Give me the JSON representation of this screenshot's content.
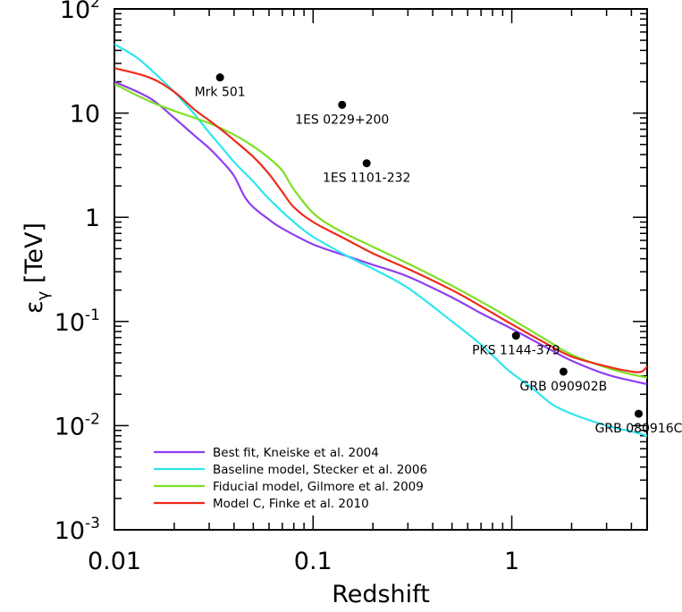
{
  "chart_data": {
    "type": "line",
    "xlabel": "Redshift",
    "ylabel": {
      "symbol": "ε",
      "subscript": "γ",
      "unit": "[TeV]"
    },
    "x_scale": "log",
    "y_scale": "log",
    "xlim": [
      0.01,
      4.8
    ],
    "ylim": [
      0.001,
      100
    ],
    "x_ticks": [
      {
        "value": 0.01,
        "label": "0.01"
      },
      {
        "value": 0.1,
        "label": "0.1"
      },
      {
        "value": 1,
        "label": "1"
      }
    ],
    "y_ticks": [
      {
        "value": 0.001,
        "base": "10",
        "exp": "-3",
        "label": ""
      },
      {
        "value": 0.01,
        "base": "10",
        "exp": "-2",
        "label": ""
      },
      {
        "value": 0.1,
        "base": "10",
        "exp": "-1",
        "label": ""
      },
      {
        "value": 1,
        "base": "",
        "exp": "",
        "label": "1"
      },
      {
        "value": 10,
        "base": "",
        "exp": "",
        "label": "10"
      },
      {
        "value": 100,
        "base": "10",
        "exp": "2",
        "label": ""
      }
    ],
    "legend_position": "bottom-left",
    "grid": false,
    "series": [
      {
        "name": "Best fit, Kneiske et al. 2004",
        "color": "#8f3ff0",
        "points": [
          [
            0.01,
            20
          ],
          [
            0.015,
            14
          ],
          [
            0.02,
            9
          ],
          [
            0.025,
            6.2
          ],
          [
            0.03,
            4.6
          ],
          [
            0.035,
            3.4
          ],
          [
            0.04,
            2.5
          ],
          [
            0.045,
            1.6
          ],
          [
            0.05,
            1.25
          ],
          [
            0.06,
            0.95
          ],
          [
            0.07,
            0.78
          ],
          [
            0.1,
            0.55
          ],
          [
            0.15,
            0.42
          ],
          [
            0.2,
            0.35
          ],
          [
            0.3,
            0.27
          ],
          [
            0.5,
            0.17
          ],
          [
            0.7,
            0.12
          ],
          [
            1.0,
            0.085
          ],
          [
            1.5,
            0.056
          ],
          [
            2.0,
            0.042
          ],
          [
            3.0,
            0.031
          ],
          [
            4.0,
            0.027
          ],
          [
            4.8,
            0.025
          ]
        ]
      },
      {
        "name": "Baseline model, Stecker et al. 2006",
        "color": "#2ee6ee",
        "points": [
          [
            0.01,
            46
          ],
          [
            0.013,
            34
          ],
          [
            0.016,
            24
          ],
          [
            0.02,
            16
          ],
          [
            0.025,
            10
          ],
          [
            0.03,
            6.5
          ],
          [
            0.035,
            4.6
          ],
          [
            0.04,
            3.4
          ],
          [
            0.05,
            2.2
          ],
          [
            0.06,
            1.5
          ],
          [
            0.08,
            0.9
          ],
          [
            0.1,
            0.65
          ],
          [
            0.15,
            0.42
          ],
          [
            0.2,
            0.32
          ],
          [
            0.3,
            0.21
          ],
          [
            0.5,
            0.1
          ],
          [
            0.7,
            0.06
          ],
          [
            0.9,
            0.038
          ],
          [
            1.0,
            0.032
          ],
          [
            1.3,
            0.022
          ],
          [
            1.6,
            0.016
          ],
          [
            2.0,
            0.013
          ],
          [
            3.0,
            0.01
          ],
          [
            4.0,
            0.0088
          ],
          [
            4.8,
            0.008
          ]
        ]
      },
      {
        "name": "Fiducial model, Gilmore et al. 2009",
        "color": "#7ee022",
        "points": [
          [
            0.01,
            19
          ],
          [
            0.015,
            13
          ],
          [
            0.02,
            10.5
          ],
          [
            0.03,
            8
          ],
          [
            0.04,
            6.2
          ],
          [
            0.05,
            4.8
          ],
          [
            0.06,
            3.7
          ],
          [
            0.07,
            2.8
          ],
          [
            0.08,
            1.85
          ],
          [
            0.1,
            1.1
          ],
          [
            0.13,
            0.78
          ],
          [
            0.2,
            0.52
          ],
          [
            0.3,
            0.36
          ],
          [
            0.5,
            0.22
          ],
          [
            0.7,
            0.155
          ],
          [
            1.0,
            0.105
          ],
          [
            1.5,
            0.066
          ],
          [
            2.0,
            0.048
          ],
          [
            3.0,
            0.036
          ],
          [
            4.0,
            0.031
          ],
          [
            4.8,
            0.029
          ]
        ]
      },
      {
        "name": "Model C, Finke et al. 2010",
        "color": "#ee2a1c",
        "points": [
          [
            0.01,
            27
          ],
          [
            0.015,
            22
          ],
          [
            0.02,
            16
          ],
          [
            0.025,
            11
          ],
          [
            0.03,
            8.5
          ],
          [
            0.035,
            6.8
          ],
          [
            0.04,
            5.5
          ],
          [
            0.05,
            3.8
          ],
          [
            0.06,
            2.6
          ],
          [
            0.07,
            1.75
          ],
          [
            0.08,
            1.25
          ],
          [
            0.1,
            0.9
          ],
          [
            0.15,
            0.6
          ],
          [
            0.2,
            0.45
          ],
          [
            0.3,
            0.32
          ],
          [
            0.5,
            0.2
          ],
          [
            0.7,
            0.14
          ],
          [
            1.0,
            0.094
          ],
          [
            1.5,
            0.061
          ],
          [
            2.0,
            0.046
          ],
          [
            3.0,
            0.037
          ],
          [
            4.0,
            0.033
          ],
          [
            4.5,
            0.033
          ],
          [
            4.8,
            0.037
          ]
        ]
      }
    ],
    "sources": [
      {
        "name": "Mrk 501",
        "x": 0.034,
        "y": 22
      },
      {
        "name": "1ES 0229+200",
        "x": 0.14,
        "y": 12
      },
      {
        "name": "1ES 1101-232",
        "x": 0.186,
        "y": 3.3
      },
      {
        "name": "PKS 1144-379",
        "x": 1.05,
        "y": 0.073
      },
      {
        "name": "GRB 090902B",
        "x": 1.82,
        "y": 0.033
      },
      {
        "name": "GRB 080916C",
        "x": 4.35,
        "y": 0.013
      }
    ]
  }
}
